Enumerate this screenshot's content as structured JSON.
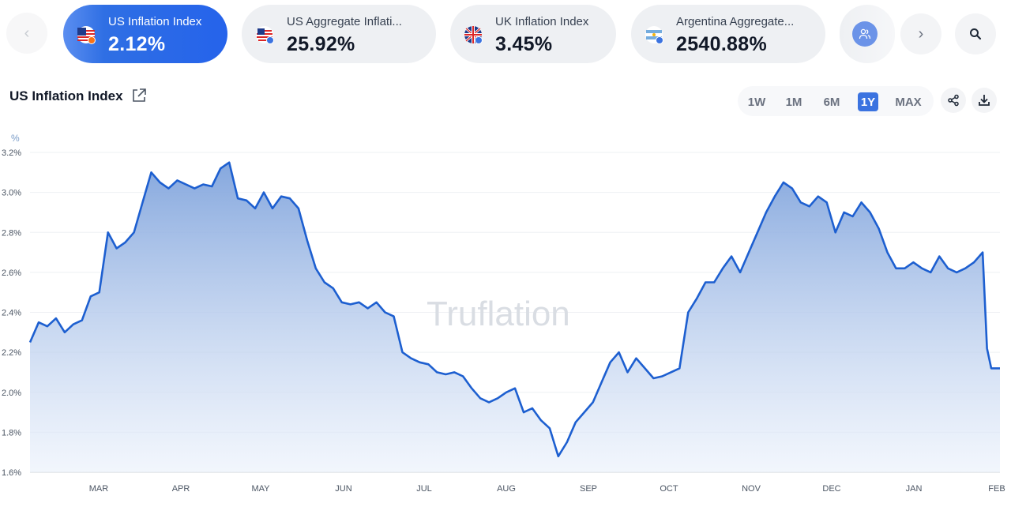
{
  "ticker": {
    "cards": [
      {
        "label": "US Inflation Index",
        "value": "2.12%",
        "flag": "us-flag-icon",
        "active": true
      },
      {
        "label": "US Aggregate Inflati...",
        "value": "25.92%",
        "flag": "us-flag-icon",
        "active": false
      },
      {
        "label": "UK Inflation Index",
        "value": "3.45%",
        "flag": "uk-flag-icon",
        "active": false
      },
      {
        "label": "Argentina Aggregate...",
        "value": "2540.88%",
        "flag": "argentina-flag-icon",
        "active": false
      }
    ],
    "prev_icon": "chevron-left-icon",
    "next_icon": "chevron-right-icon",
    "search_icon": "search-icon"
  },
  "header": {
    "title": "US Inflation Index",
    "external_icon": "external-link-icon",
    "ranges": [
      "1W",
      "1M",
      "6M",
      "1Y",
      "MAX"
    ],
    "active_range": "1Y",
    "share_icon": "share-icon",
    "download_icon": "download-icon"
  },
  "colors": {
    "accent": "#2563eb",
    "line": "#1d5fd0",
    "fill_top": "#8aacdf",
    "watermark": "#d9dde3"
  },
  "chart_data": {
    "type": "area",
    "title": "",
    "watermark": "Truflation",
    "unit_label": "%",
    "ylim": [
      1.6,
      3.2
    ],
    "y_ticks": [
      "3.2%",
      "3.0%",
      "2.8%",
      "2.6%",
      "2.4%",
      "2.2%",
      "2.0%",
      "1.8%",
      "1.6%"
    ],
    "x_ticks": [
      "MAR",
      "APR",
      "MAY",
      "JUN",
      "JUL",
      "AUG",
      "SEP",
      "OCT",
      "NOV",
      "DEC",
      "JAN",
      "FEB"
    ],
    "grid": true,
    "series": [
      {
        "x": [
          0.0,
          0.1,
          0.2,
          0.3,
          0.4,
          0.5,
          0.6,
          0.7,
          0.8,
          0.9,
          1.0,
          1.1,
          1.2,
          1.3,
          1.4,
          1.5,
          1.6,
          1.7,
          1.8,
          1.9,
          2.0,
          2.1,
          2.2,
          2.3,
          2.4,
          2.5,
          2.6,
          2.7,
          2.8,
          2.9,
          3.0,
          3.1,
          3.2,
          3.3,
          3.4,
          3.5,
          3.6,
          3.7,
          3.8,
          3.9,
          4.0,
          4.1,
          4.2,
          4.3,
          4.4,
          4.5,
          4.6,
          4.7,
          4.8,
          4.9,
          5.0,
          5.1,
          5.2,
          5.3,
          5.4,
          5.5,
          5.6,
          5.7,
          5.8,
          5.9,
          6.0,
          6.1,
          6.2,
          6.3,
          6.4,
          6.5,
          6.6,
          6.7,
          6.8,
          6.9,
          7.0,
          7.1,
          7.2,
          7.3,
          7.4,
          7.5,
          7.6,
          7.7,
          7.8,
          7.9,
          8.0,
          8.1,
          8.2,
          8.3,
          8.4,
          8.5,
          8.6,
          8.7,
          8.8,
          8.9,
          9.0,
          9.1,
          9.2,
          9.3,
          9.4,
          9.5,
          9.6,
          9.7,
          9.8,
          9.9,
          10.0,
          10.1,
          10.2,
          10.3,
          10.4,
          10.5,
          10.6,
          10.7,
          10.8,
          10.9,
          11.0,
          11.05,
          11.1,
          11.2
        ],
        "values": [
          2.25,
          2.35,
          2.33,
          2.37,
          2.3,
          2.34,
          2.36,
          2.48,
          2.5,
          2.8,
          2.72,
          2.75,
          2.8,
          2.95,
          3.1,
          3.05,
          3.02,
          3.06,
          3.04,
          3.02,
          3.04,
          3.03,
          3.12,
          3.15,
          2.97,
          2.96,
          2.92,
          3.0,
          2.92,
          2.98,
          2.97,
          2.92,
          2.76,
          2.62,
          2.55,
          2.52,
          2.45,
          2.44,
          2.45,
          2.42,
          2.45,
          2.4,
          2.38,
          2.2,
          2.17,
          2.15,
          2.14,
          2.1,
          2.09,
          2.1,
          2.08,
          2.02,
          1.97,
          1.95,
          1.97,
          2.0,
          2.02,
          1.9,
          1.92,
          1.86,
          1.82,
          1.68,
          1.75,
          1.85,
          1.9,
          1.95,
          2.05,
          2.15,
          2.2,
          2.1,
          2.17,
          2.12,
          2.07,
          2.08,
          2.1,
          2.12,
          2.4,
          2.47,
          2.55,
          2.55,
          2.62,
          2.68,
          2.6,
          2.7,
          2.8,
          2.9,
          2.98,
          3.05,
          3.02,
          2.95,
          2.93,
          2.98,
          2.95,
          2.8,
          2.9,
          2.88,
          2.95,
          2.9,
          2.82,
          2.7,
          2.62,
          2.62,
          2.65,
          2.62,
          2.6,
          2.68,
          2.62,
          2.6,
          2.62,
          2.65,
          2.7,
          2.22,
          2.12,
          2.12
        ]
      }
    ]
  }
}
